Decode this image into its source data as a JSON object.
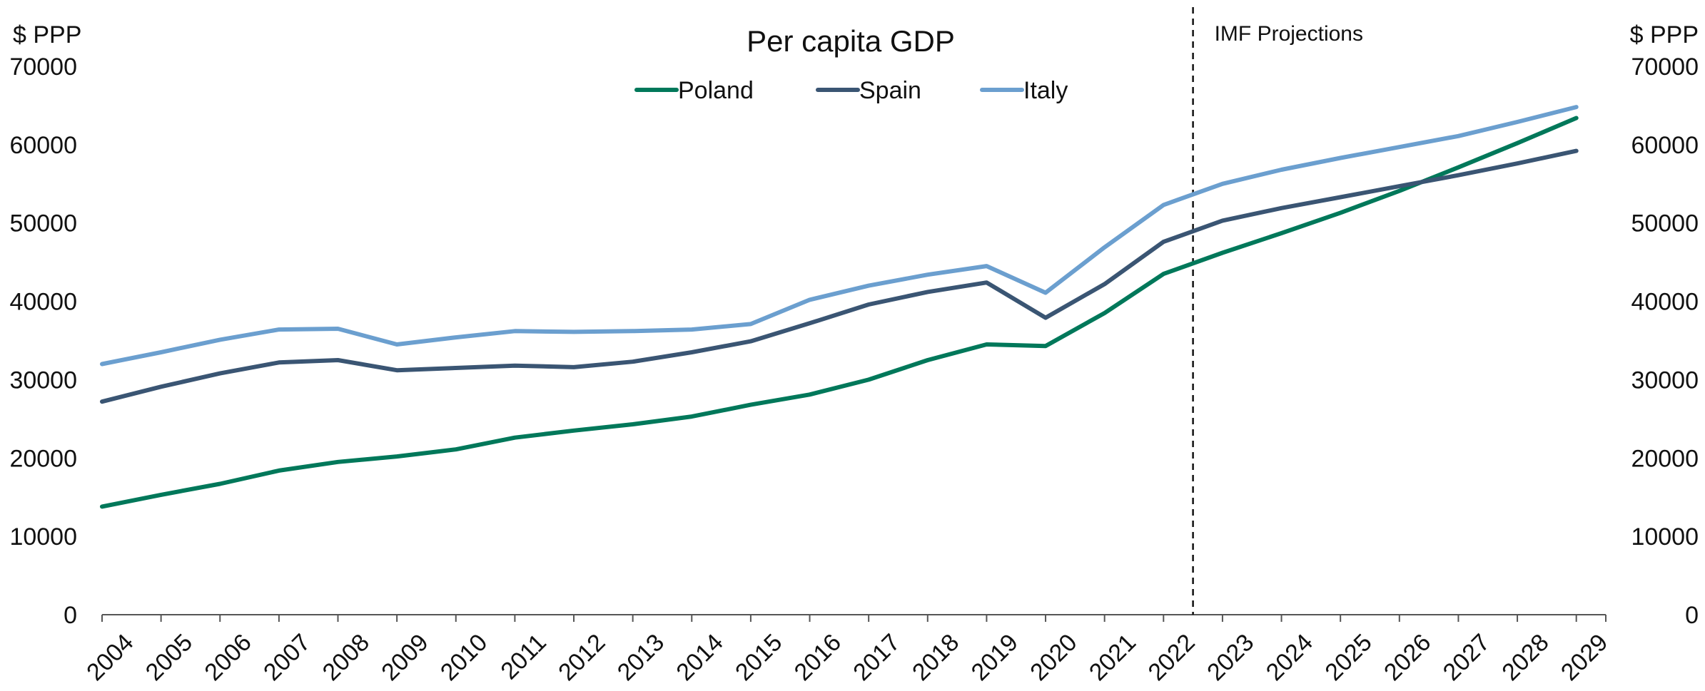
{
  "chart_data": {
    "type": "line",
    "title": "Per capita GDP",
    "ylabel_left": "$ PPP",
    "ylabel_right": "$ PPP",
    "x": [
      "2004",
      "2005",
      "2006",
      "2007",
      "2008",
      "2009",
      "2010",
      "2011",
      "2012",
      "2013",
      "2014",
      "2015",
      "2016",
      "2017",
      "2018",
      "2019",
      "2020",
      "2021",
      "2022",
      "2023",
      "2024",
      "2025",
      "2026",
      "2027",
      "2028",
      "2029"
    ],
    "ylim": [
      0,
      70000
    ],
    "yticks": [
      "0",
      "10000",
      "20000",
      "30000",
      "40000",
      "50000",
      "60000",
      "70000"
    ],
    "grid": false,
    "legend": {
      "placement": "top-center"
    },
    "series": [
      {
        "name": "Poland",
        "color": "#00785A",
        "values": [
          13800,
          15300,
          16700,
          18400,
          19500,
          20200,
          21100,
          22600,
          23500,
          24300,
          25300,
          26800,
          28100,
          30000,
          32500,
          34500,
          34300,
          38500,
          43500,
          46200,
          48700,
          51300,
          54100,
          57100,
          60200,
          63400
        ]
      },
      {
        "name": "Spain",
        "color": "#3A5573",
        "values": [
          27200,
          29100,
          30800,
          32200,
          32500,
          31200,
          31500,
          31800,
          31600,
          32300,
          33500,
          34900,
          37200,
          39600,
          41200,
          42400,
          37900,
          42200,
          47600,
          50300,
          51900,
          53300,
          54700,
          56100,
          57600,
          59200
        ]
      },
      {
        "name": "Italy",
        "color": "#6B9FCF",
        "values": [
          32000,
          33500,
          35100,
          36400,
          36500,
          34500,
          35400,
          36200,
          36100,
          36200,
          36400,
          37100,
          40200,
          42000,
          43400,
          44500,
          41100,
          46900,
          52300,
          55000,
          56800,
          58300,
          59700,
          61100,
          62900,
          64800
        ]
      }
    ],
    "annotations": [
      {
        "text": "IMF Projections",
        "at_x": "2022.5",
        "line_style": "dashed"
      }
    ]
  }
}
